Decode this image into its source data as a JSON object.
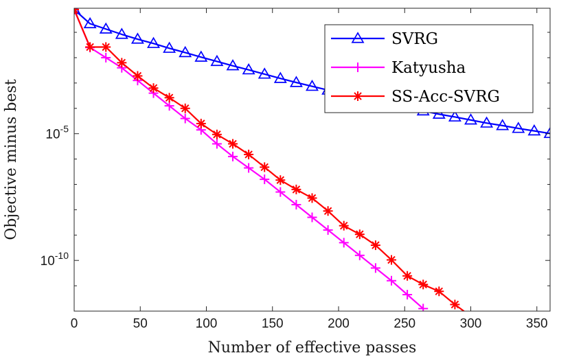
{
  "chart_data": {
    "type": "line",
    "title": "",
    "xlabel": "Number of effective passes",
    "ylabel": "Objective minus best",
    "yscale": "log",
    "xlim": [
      0,
      360
    ],
    "ylim_exp": [
      -12,
      -0.05
    ],
    "xticks": [
      0,
      50,
      100,
      150,
      200,
      250,
      300,
      350
    ],
    "yticks": [
      {
        "exp": -5,
        "base": "10",
        "sup": "-5"
      },
      {
        "exp": -10,
        "base": "10",
        "sup": "-10"
      }
    ],
    "grid": false,
    "legend_position": "top-right",
    "series": [
      {
        "name": "SVRG",
        "color": "#0000ff",
        "marker": "triangle",
        "x": [
          0,
          12,
          24,
          36,
          48,
          60,
          72,
          84,
          96,
          108,
          120,
          132,
          144,
          156,
          168,
          180,
          192,
          204,
          216,
          228,
          240,
          252,
          264,
          276,
          288,
          300,
          312,
          324,
          336,
          348,
          360
        ],
        "exp": [
          -0.1,
          -0.66,
          -0.87,
          -1.08,
          -1.27,
          -1.44,
          -1.63,
          -1.8,
          -1.98,
          -2.15,
          -2.32,
          -2.48,
          -2.65,
          -2.82,
          -2.98,
          -3.13,
          -3.28,
          -3.42,
          -3.56,
          -3.7,
          -3.84,
          -3.97,
          -4.1,
          -4.23,
          -4.34,
          -4.46,
          -4.58,
          -4.68,
          -4.79,
          -4.89,
          -4.99
        ]
      },
      {
        "name": "Katyusha",
        "color": "#ff00ff",
        "marker": "plus",
        "x": [
          0,
          12,
          24,
          36,
          48,
          60,
          72,
          84,
          96,
          108,
          120,
          132,
          144,
          156,
          168,
          180,
          192,
          204,
          216,
          228,
          240,
          252,
          264
        ],
        "exp": [
          -0.1,
          -1.6,
          -2.0,
          -2.4,
          -2.9,
          -3.4,
          -3.9,
          -4.4,
          -4.85,
          -5.4,
          -5.9,
          -6.35,
          -6.8,
          -7.3,
          -7.8,
          -8.3,
          -8.8,
          -9.3,
          -9.8,
          -10.3,
          -10.8,
          -11.35,
          -11.9
        ]
      },
      {
        "name": "SS-Acc-SVRG",
        "color": "#ff0000",
        "marker": "star",
        "x": [
          0,
          12,
          24,
          36,
          48,
          60,
          72,
          84,
          96,
          108,
          120,
          132,
          144,
          156,
          168,
          180,
          192,
          204,
          216,
          228,
          240,
          252,
          264,
          276,
          288,
          300
        ],
        "exp": [
          -0.1,
          -1.58,
          -1.58,
          -2.2,
          -2.72,
          -3.2,
          -3.58,
          -4.0,
          -4.6,
          -5.03,
          -5.4,
          -5.82,
          -6.32,
          -6.83,
          -7.2,
          -7.54,
          -8.05,
          -8.63,
          -8.97,
          -9.4,
          -9.98,
          -10.61,
          -10.95,
          -11.22,
          -11.74,
          -12.2
        ]
      }
    ]
  }
}
